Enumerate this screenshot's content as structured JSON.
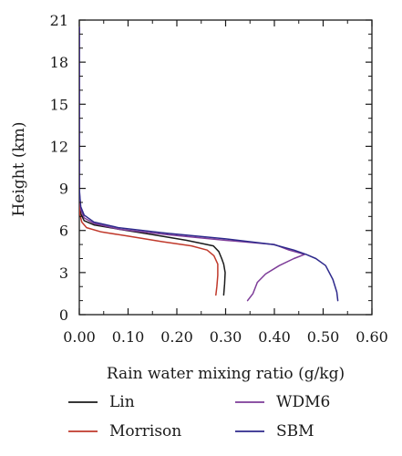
{
  "chart_data": {
    "type": "line",
    "xlabel": "Rain water mixing ratio (g/kg)",
    "ylabel": "Height (km)",
    "xlim": [
      0,
      0.6
    ],
    "ylim": [
      0,
      21
    ],
    "xticks": [
      "0.00",
      "0.10",
      "0.20",
      "0.30",
      "0.40",
      "0.50",
      "0.60"
    ],
    "yticks": [
      "0",
      "3",
      "6",
      "9",
      "12",
      "15",
      "18",
      "21"
    ],
    "grid": false,
    "legend_position": "bottom",
    "series": [
      {
        "name": "Lin",
        "color": "#1a1a1a",
        "points": [
          [
            0.296,
            1.4
          ],
          [
            0.298,
            2.2
          ],
          [
            0.299,
            3.0
          ],
          [
            0.296,
            3.6
          ],
          [
            0.292,
            4.0
          ],
          [
            0.286,
            4.5
          ],
          [
            0.275,
            4.9
          ],
          [
            0.22,
            5.3
          ],
          [
            0.15,
            5.7
          ],
          [
            0.08,
            6.1
          ],
          [
            0.03,
            6.4
          ],
          [
            0.01,
            6.7
          ],
          [
            0.003,
            7.2
          ],
          [
            0.001,
            8.0
          ],
          [
            0.0,
            9.0
          ],
          [
            0.0,
            12.0
          ],
          [
            0.0,
            15.0
          ],
          [
            0.0,
            18.0
          ],
          [
            0.0,
            20.5
          ]
        ]
      },
      {
        "name": "Morrison",
        "color": "#c0392b",
        "points": [
          [
            0.28,
            1.4
          ],
          [
            0.282,
            2.0
          ],
          [
            0.284,
            2.8
          ],
          [
            0.284,
            3.6
          ],
          [
            0.276,
            4.2
          ],
          [
            0.262,
            4.6
          ],
          [
            0.23,
            4.9
          ],
          [
            0.17,
            5.2
          ],
          [
            0.1,
            5.6
          ],
          [
            0.045,
            5.9
          ],
          [
            0.015,
            6.2
          ],
          [
            0.005,
            6.6
          ],
          [
            0.001,
            7.2
          ],
          [
            0.0,
            8.0
          ],
          [
            0.0,
            9.0
          ],
          [
            0.0,
            12.0
          ],
          [
            0.0,
            15.0
          ],
          [
            0.0,
            18.0
          ],
          [
            0.0,
            20.5
          ]
        ]
      },
      {
        "name": "WDM6",
        "color": "#7d3c98",
        "points": [
          [
            0.345,
            1.0
          ],
          [
            0.356,
            1.5
          ],
          [
            0.365,
            2.3
          ],
          [
            0.382,
            2.9
          ],
          [
            0.41,
            3.5
          ],
          [
            0.44,
            4.0
          ],
          [
            0.462,
            4.3
          ],
          [
            0.43,
            4.6
          ],
          [
            0.4,
            5.0
          ],
          [
            0.3,
            5.3
          ],
          [
            0.18,
            5.7
          ],
          [
            0.08,
            6.1
          ],
          [
            0.03,
            6.5
          ],
          [
            0.01,
            6.9
          ],
          [
            0.003,
            7.5
          ],
          [
            0.001,
            8.4
          ],
          [
            0.0,
            9.0
          ],
          [
            0.0,
            12.0
          ],
          [
            0.0,
            15.0
          ],
          [
            0.0,
            18.0
          ],
          [
            0.0,
            20.5
          ]
        ]
      },
      {
        "name": "SBM",
        "color": "#2e2a8c",
        "points": [
          [
            0.53,
            1.0
          ],
          [
            0.528,
            1.6
          ],
          [
            0.52,
            2.5
          ],
          [
            0.505,
            3.5
          ],
          [
            0.485,
            4.0
          ],
          [
            0.465,
            4.3
          ],
          [
            0.44,
            4.6
          ],
          [
            0.398,
            5.0
          ],
          [
            0.3,
            5.4
          ],
          [
            0.18,
            5.8
          ],
          [
            0.08,
            6.2
          ],
          [
            0.03,
            6.6
          ],
          [
            0.01,
            7.1
          ],
          [
            0.003,
            7.7
          ],
          [
            0.001,
            8.5
          ],
          [
            0.0,
            9.0
          ],
          [
            0.0,
            12.0
          ],
          [
            0.0,
            15.0
          ],
          [
            0.0,
            18.0
          ],
          [
            0.0,
            20.5
          ]
        ]
      }
    ]
  }
}
